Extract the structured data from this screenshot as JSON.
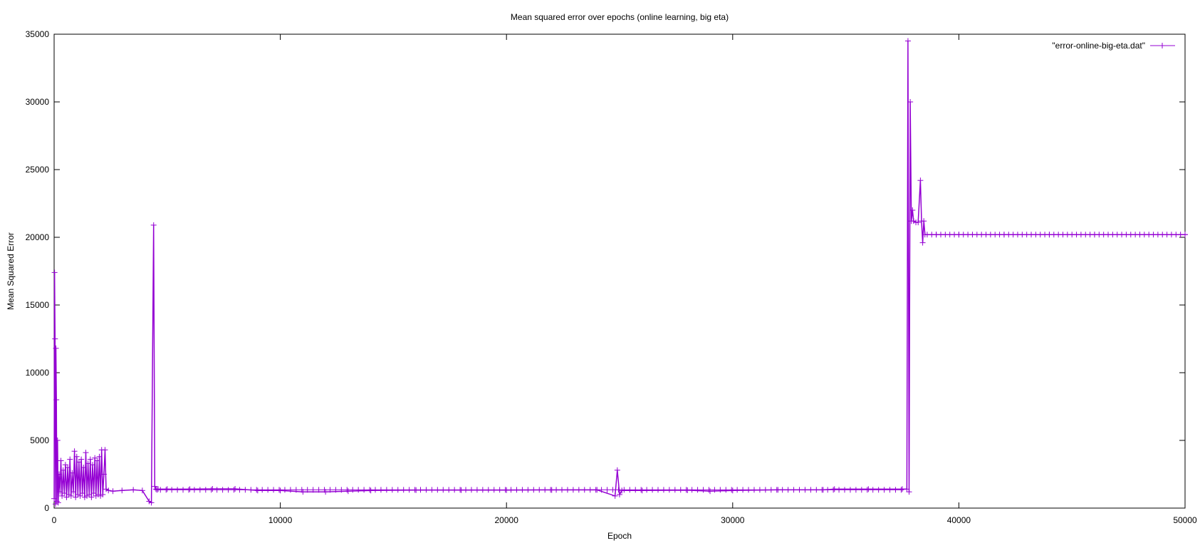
{
  "chart_data": {
    "type": "line",
    "title": "Mean squared error over epochs (online learning, big eta)",
    "xlabel": "Epoch",
    "ylabel": "Mean Squared Error",
    "xlim": [
      0,
      50000
    ],
    "ylim": [
      0,
      35000
    ],
    "x_ticks": [
      0,
      10000,
      20000,
      30000,
      40000,
      50000
    ],
    "y_ticks": [
      0,
      5000,
      10000,
      15000,
      20000,
      25000,
      30000,
      35000
    ],
    "grid": false,
    "legend_position": "top-right",
    "series": [
      {
        "name": "\"error-online-big-eta.dat\"",
        "color": "#9400d3",
        "marker": "plus",
        "x": [
          0,
          20,
          40,
          60,
          80,
          100,
          120,
          150,
          180,
          220,
          260,
          300,
          350,
          400,
          450,
          500,
          550,
          600,
          650,
          700,
          750,
          800,
          850,
          900,
          950,
          1000,
          1050,
          1100,
          1150,
          1200,
          1250,
          1300,
          1350,
          1400,
          1450,
          1500,
          1550,
          1600,
          1650,
          1700,
          1750,
          1800,
          1850,
          1900,
          1950,
          2000,
          2050,
          2100,
          2150,
          2200,
          2250,
          2300,
          2400,
          2600,
          3000,
          3500,
          3900,
          4200,
          4300,
          4400,
          4450,
          4500,
          4550,
          4600,
          5000,
          6000,
          7000,
          8000,
          9000,
          10000,
          11000,
          12000,
          13000,
          14000,
          16000,
          18000,
          20000,
          22000,
          24000,
          24800,
          24900,
          25000,
          25100,
          26000,
          28000,
          29000,
          30000,
          32000,
          34000,
          34500,
          36000,
          37500,
          37700,
          37750,
          37800,
          37850,
          37900,
          37950,
          38000,
          38100,
          38200,
          38300,
          38350,
          38400,
          38450,
          38500,
          39000,
          40000,
          42000,
          44000,
          46000,
          48000,
          50000
        ],
        "y": [
          700,
          17400,
          12500,
          300,
          11800,
          8000,
          500,
          5000,
          400,
          2500,
          1200,
          3500,
          900,
          2800,
          1100,
          3200,
          800,
          3000,
          1000,
          3600,
          900,
          2600,
          1200,
          4200,
          800,
          3800,
          1000,
          3400,
          900,
          3600,
          1100,
          3000,
          800,
          4100,
          900,
          3300,
          1000,
          3600,
          800,
          3200,
          1100,
          3700,
          900,
          3500,
          1000,
          3800,
          900,
          4300,
          1000,
          2500,
          4300,
          1400,
          1300,
          1250,
          1300,
          1350,
          1300,
          500,
          400,
          20900,
          1600,
          1400,
          1350,
          1400,
          1400,
          1400,
          1420,
          1420,
          1300,
          1300,
          1200,
          1200,
          1250,
          1300,
          1330,
          1330,
          1330,
          1340,
          1350,
          900,
          2800,
          1000,
          1300,
          1300,
          1320,
          1250,
          1300,
          1350,
          1350,
          1400,
          1400,
          1400,
          1400,
          34500,
          1200,
          30000,
          21200,
          22000,
          21200,
          21100,
          21100,
          24200,
          21200,
          19600,
          21200,
          20200,
          20200,
          20200,
          20200,
          20200,
          20200,
          20200,
          20200
        ]
      }
    ]
  }
}
